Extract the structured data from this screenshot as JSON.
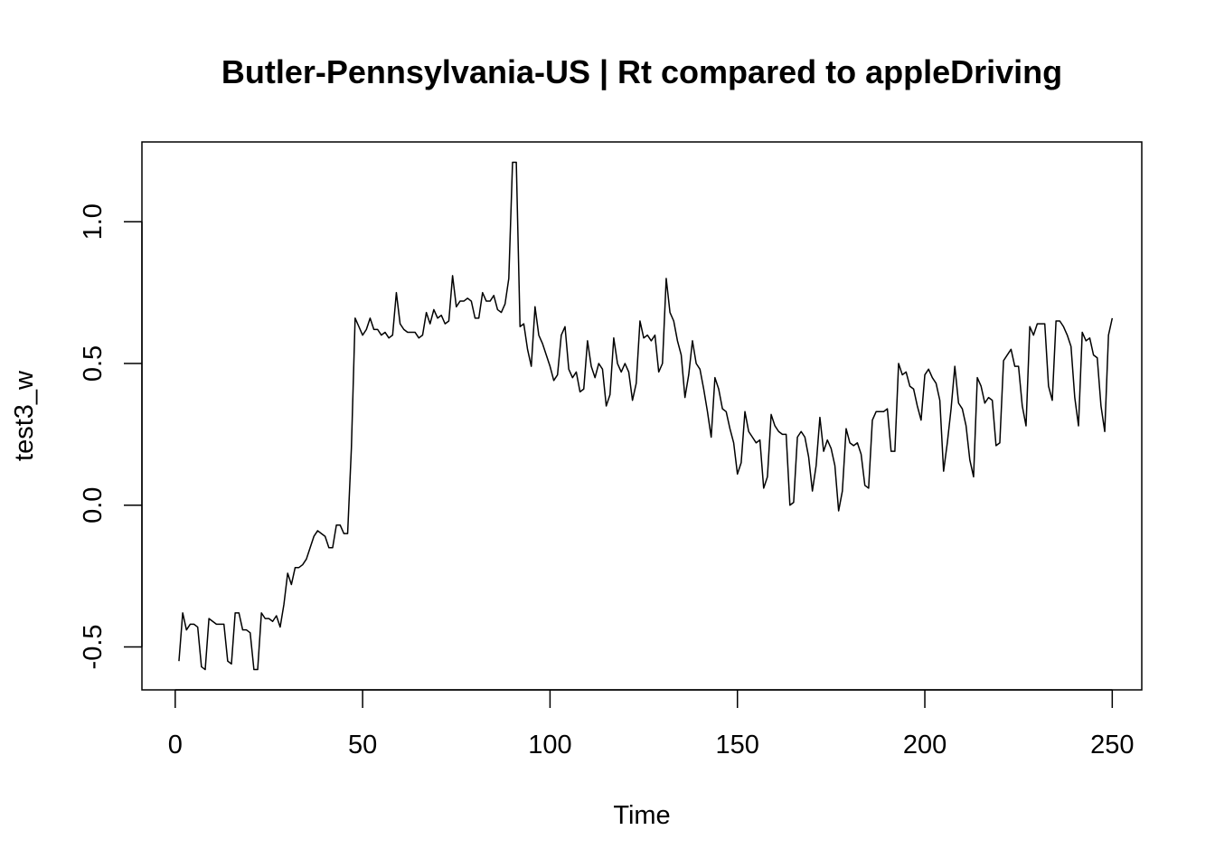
{
  "chart_data": {
    "type": "line",
    "title": "Butler-Pennsylvania-US | Rt compared to appleDriving",
    "xlabel": "Time",
    "ylabel": "test3_w",
    "xlim": [
      1,
      248
    ],
    "ylim": [
      -0.58,
      1.21
    ],
    "x_ticks": [
      0,
      50,
      100,
      150,
      200,
      250
    ],
    "y_ticks": [
      -0.5,
      0.0,
      0.5,
      1.0
    ],
    "x_tick_labels": [
      "0",
      "50",
      "100",
      "150",
      "200",
      "250"
    ],
    "y_tick_labels": [
      "-0.5",
      "0.0",
      "0.5",
      "1.0"
    ],
    "grid": false,
    "legend": "none",
    "line_color": "#000000",
    "series": [
      {
        "x_start": 1,
        "values": [
          -0.55,
          -0.38,
          -0.44,
          -0.42,
          -0.42,
          -0.43,
          -0.57,
          -0.58,
          -0.4,
          -0.41,
          -0.42,
          -0.42,
          -0.42,
          -0.55,
          -0.56,
          -0.38,
          -0.38,
          -0.44,
          -0.44,
          -0.45,
          -0.58,
          -0.58,
          -0.38,
          -0.4,
          -0.4,
          -0.41,
          -0.39,
          -0.43,
          -0.35,
          -0.24,
          -0.28,
          -0.22,
          -0.22,
          -0.21,
          -0.19,
          -0.15,
          -0.11,
          -0.09,
          -0.1,
          -0.11,
          -0.15,
          -0.15,
          -0.07,
          -0.07,
          -0.1,
          -0.1,
          0.2,
          0.66,
          0.63,
          0.6,
          0.62,
          0.66,
          0.62,
          0.62,
          0.6,
          0.61,
          0.59,
          0.6,
          0.75,
          0.64,
          0.62,
          0.61,
          0.61,
          0.61,
          0.59,
          0.6,
          0.68,
          0.64,
          0.69,
          0.66,
          0.67,
          0.64,
          0.65,
          0.81,
          0.7,
          0.72,
          0.72,
          0.73,
          0.72,
          0.66,
          0.66,
          0.75,
          0.72,
          0.72,
          0.74,
          0.69,
          0.68,
          0.71,
          0.8,
          1.21,
          1.21,
          0.63,
          0.64,
          0.55,
          0.49,
          0.7,
          0.6,
          0.57,
          0.53,
          0.49,
          0.44,
          0.46,
          0.6,
          0.63,
          0.48,
          0.45,
          0.47,
          0.4,
          0.41,
          0.58,
          0.49,
          0.45,
          0.5,
          0.48,
          0.35,
          0.39,
          0.59,
          0.5,
          0.47,
          0.5,
          0.47,
          0.37,
          0.43,
          0.65,
          0.59,
          0.6,
          0.58,
          0.6,
          0.47,
          0.5,
          0.8,
          0.68,
          0.65,
          0.58,
          0.53,
          0.38,
          0.46,
          0.58,
          0.5,
          0.48,
          0.41,
          0.33,
          0.24,
          0.45,
          0.41,
          0.34,
          0.33,
          0.27,
          0.22,
          0.11,
          0.15,
          0.33,
          0.26,
          0.24,
          0.22,
          0.23,
          0.06,
          0.1,
          0.32,
          0.28,
          0.26,
          0.25,
          0.25,
          0.0,
          0.01,
          0.24,
          0.26,
          0.24,
          0.17,
          0.05,
          0.14,
          0.31,
          0.19,
          0.23,
          0.2,
          0.14,
          -0.02,
          0.05,
          0.27,
          0.22,
          0.21,
          0.22,
          0.18,
          0.07,
          0.06,
          0.3,
          0.33,
          0.33,
          0.33,
          0.34,
          0.19,
          0.19,
          0.5,
          0.46,
          0.47,
          0.42,
          0.41,
          0.35,
          0.3,
          0.46,
          0.48,
          0.45,
          0.43,
          0.37,
          0.12,
          0.22,
          0.34,
          0.49,
          0.36,
          0.34,
          0.28,
          0.16,
          0.1,
          0.45,
          0.42,
          0.36,
          0.38,
          0.37,
          0.21,
          0.22,
          0.51,
          0.53,
          0.55,
          0.49,
          0.49,
          0.35,
          0.28,
          0.63,
          0.6,
          0.64,
          0.64,
          0.64,
          0.42,
          0.37,
          0.65,
          0.65,
          0.63,
          0.6,
          0.56,
          0.38,
          0.28,
          0.61,
          0.58,
          0.59,
          0.53,
          0.52,
          0.35,
          0.26,
          0.6,
          0.66
        ]
      }
    ]
  }
}
